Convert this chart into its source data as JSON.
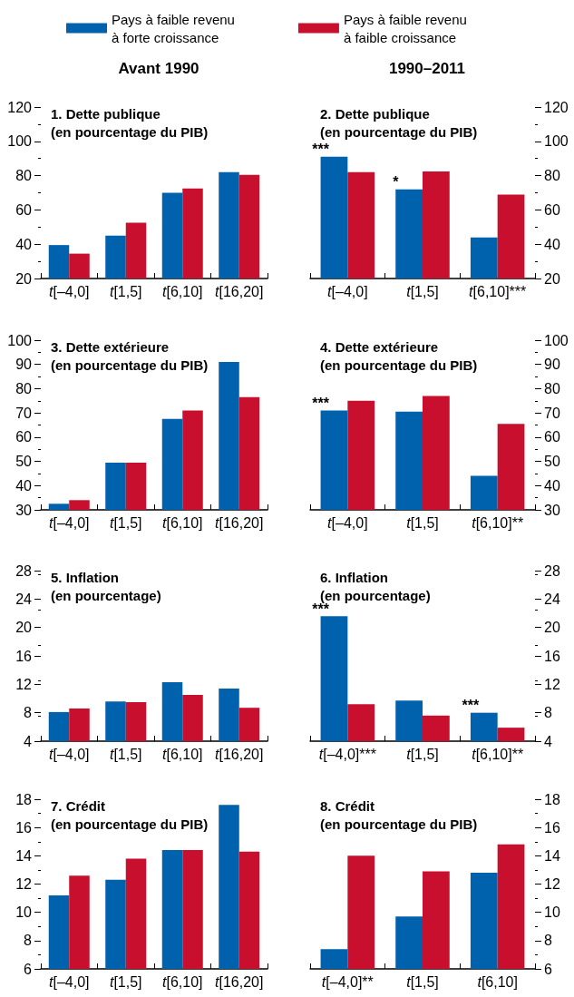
{
  "chart_data": [
    {
      "type": "bar",
      "title": "1. Dette publique\n(en pourcentage du PIB)",
      "subtitle": "Avant 1990",
      "legend": "top",
      "categories": [
        "t[–4,0]",
        "t[1,5]",
        "t[6,10]",
        "t[16,20]"
      ],
      "ylim": [
        20,
        120
      ],
      "yticks": [
        20,
        40,
        60,
        80,
        100,
        120
      ],
      "series": [
        {
          "name": "Pays à faible revenu\nà forte croissance",
          "color": "#0061ad",
          "values": [
            39.5,
            45,
            70,
            82
          ]
        },
        {
          "name": "Pays à faible revenu\nà faible croissance",
          "color": "#c8102e",
          "values": [
            34.5,
            52.5,
            72.5,
            80.5
          ]
        }
      ]
    },
    {
      "type": "bar",
      "title": "2. Dette publique\n(en pourcentage du PIB)",
      "subtitle": "1990–2011",
      "categories": [
        "t[–4,0]",
        "t[1,5]",
        "t[6,10]***"
      ],
      "ylim": [
        20,
        120
      ],
      "yticks": [
        20,
        40,
        60,
        80,
        100,
        120
      ],
      "annotations": [
        {
          "text": "***",
          "x": "t[–4,0]",
          "y": 91
        },
        {
          "text": "*",
          "x": "t[1,5]",
          "y": 72
        }
      ],
      "series": [
        {
          "color": "#0061ad",
          "values": [
            91,
            72,
            44
          ]
        },
        {
          "color": "#c8102e",
          "values": [
            82,
            82.5,
            69
          ]
        }
      ]
    },
    {
      "type": "bar",
      "title": "3. Dette extérieure\n(en pourcentage du PIB)",
      "categories": [
        "t[–4,0]",
        "t[1,5]",
        "t[6,10]",
        "t[16,20]"
      ],
      "ylim": [
        30,
        100
      ],
      "yticks": [
        30,
        40,
        50,
        60,
        70,
        80,
        90,
        100
      ],
      "series": [
        {
          "color": "#0061ad",
          "values": [
            32.5,
            49.5,
            67.5,
            91
          ]
        },
        {
          "color": "#c8102e",
          "values": [
            34,
            49.5,
            71,
            76.5
          ]
        }
      ]
    },
    {
      "type": "bar",
      "title": "4. Dette extérieure\n(en pourcentage du PIB)",
      "categories": [
        "t[–4,0]",
        "t[1,5]",
        "t[6,10]**"
      ],
      "ylim": [
        30,
        100
      ],
      "yticks": [
        30,
        40,
        50,
        60,
        70,
        80,
        90,
        100
      ],
      "annotations": [
        {
          "text": "***",
          "x": "t[–4,0]",
          "y": 71
        }
      ],
      "series": [
        {
          "color": "#0061ad",
          "values": [
            71,
            70.5,
            44
          ]
        },
        {
          "color": "#c8102e",
          "values": [
            75,
            77,
            65.5
          ]
        }
      ]
    },
    {
      "type": "bar",
      "title": "5. Inflation\n(en pourcentage)",
      "categories": [
        "t[–4,0]",
        "t[1,5]",
        "t[6,10]",
        "t[16,20]"
      ],
      "ylim": [
        4,
        28
      ],
      "yticks": [
        4,
        8,
        12,
        16,
        20,
        24,
        28
      ],
      "series": [
        {
          "color": "#0061ad",
          "values": [
            8.1,
            9.6,
            12.3,
            11.4
          ]
        },
        {
          "color": "#c8102e",
          "values": [
            8.6,
            9.5,
            10.5,
            8.7
          ]
        }
      ]
    },
    {
      "type": "bar",
      "title": "6. Inflation\n(en pourcentage)",
      "categories": [
        "t[–4,0]***",
        "t[1,5]",
        "t[6,10]**"
      ],
      "ylim": [
        4,
        28
      ],
      "yticks": [
        4,
        8,
        12,
        16,
        20,
        24,
        28
      ],
      "annotations": [
        {
          "text": "***",
          "x": "t[–4,0]***",
          "y": 21.6
        },
        {
          "text": "***",
          "x": "t[6,10]**",
          "y": 8
        }
      ],
      "series": [
        {
          "color": "#0061ad",
          "values": [
            21.6,
            9.7,
            8
          ]
        },
        {
          "color": "#c8102e",
          "values": [
            9.2,
            7.6,
            5.9
          ]
        }
      ]
    },
    {
      "type": "bar",
      "title": "7. Crédit\n(en pourcentage du PIB)",
      "categories": [
        "t[–4,0]",
        "t[1,5]",
        "t[6,10]",
        "t[16,20]"
      ],
      "ylim": [
        6,
        18
      ],
      "yticks": [
        6,
        8,
        10,
        12,
        14,
        16,
        18
      ],
      "series": [
        {
          "color": "#0061ad",
          "values": [
            11.2,
            12.3,
            14.4,
            17.6
          ]
        },
        {
          "color": "#c8102e",
          "values": [
            12.6,
            13.8,
            14.4,
            14.3
          ]
        }
      ]
    },
    {
      "type": "bar",
      "title": "8. Crédit\n(en pourcentage du PIB)",
      "categories": [
        "t[–4,0]**",
        "t[1,5]",
        "t[6,10]"
      ],
      "ylim": [
        6,
        18
      ],
      "yticks": [
        6,
        8,
        10,
        12,
        14,
        16,
        18
      ],
      "series": [
        {
          "color": "#0061ad",
          "values": [
            7.4,
            9.7,
            12.8
          ]
        },
        {
          "color": "#c8102e",
          "values": [
            14,
            12.9,
            14.8
          ]
        }
      ]
    }
  ]
}
